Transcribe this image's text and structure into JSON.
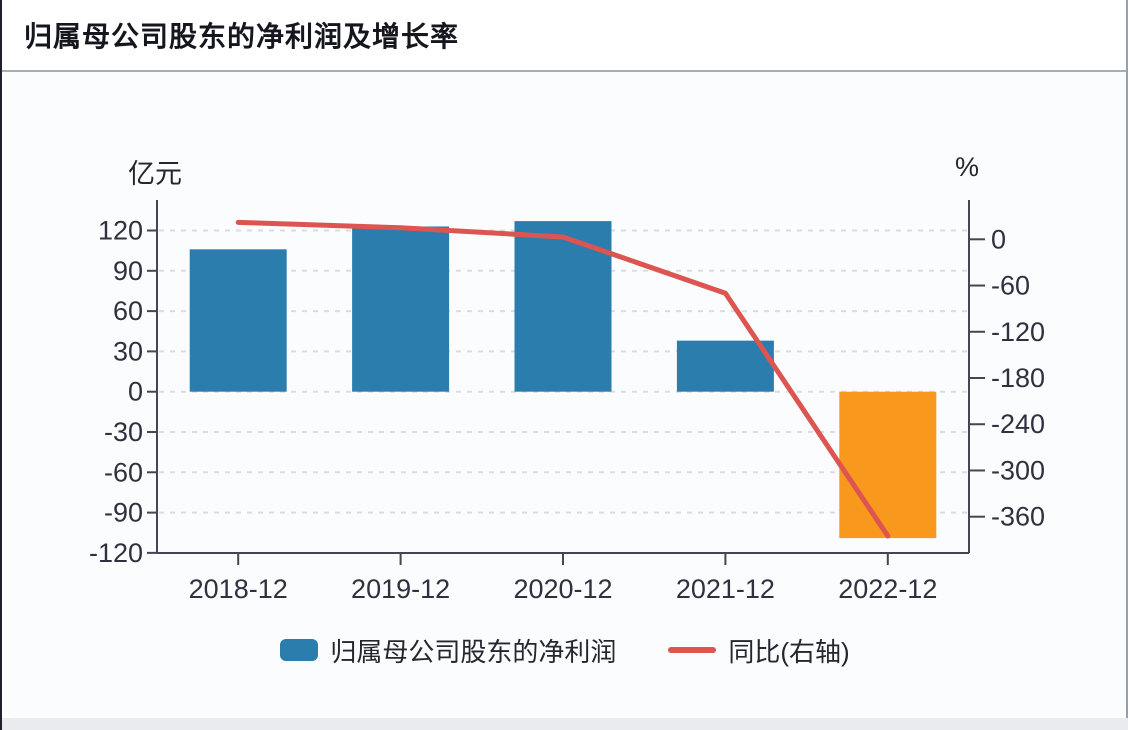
{
  "header": {
    "title": "归属母公司股东的净利润及增长率"
  },
  "chart_data": {
    "type": "bar+line (dual axis)",
    "title": "归属母公司股东的净利润及增长率",
    "categories": [
      "2018-12",
      "2019-12",
      "2020-12",
      "2021-12",
      "2022-12"
    ],
    "series": [
      {
        "name": "归属母公司股东的净利润",
        "type": "bar",
        "axis": "left",
        "unit": "亿元",
        "values": [
          106,
          123,
          127,
          38,
          -109
        ],
        "color_positive": "#2b7dad",
        "color_negative": "#f8981d"
      },
      {
        "name": "同比(右轴)",
        "type": "line",
        "axis": "right",
        "unit": "%",
        "values": [
          22,
          15,
          3,
          -70,
          -385
        ],
        "color": "#dc5550"
      }
    ],
    "left_axis": {
      "title": "亿元",
      "ticks": [
        120,
        90,
        60,
        30,
        0,
        -30,
        -60,
        -90,
        -120
      ],
      "range": [
        -120,
        135
      ]
    },
    "right_axis": {
      "title": "%",
      "ticks": [
        0,
        -60,
        -120,
        -180,
        -240,
        -300,
        -360
      ],
      "range": [
        31,
        -421
      ]
    },
    "grid": true,
    "legend_position": "bottom"
  },
  "legend": {
    "items": [
      {
        "label": "归属母公司股东的净利润",
        "swatch": "bar",
        "color": "#2b7dad"
      },
      {
        "label": "同比(右轴)",
        "swatch": "line",
        "color": "#dc5550"
      }
    ]
  },
  "style": {
    "axis_line_color": "#454553",
    "grid_color": "#d9dde2",
    "tick_label_color": "#30303f"
  }
}
